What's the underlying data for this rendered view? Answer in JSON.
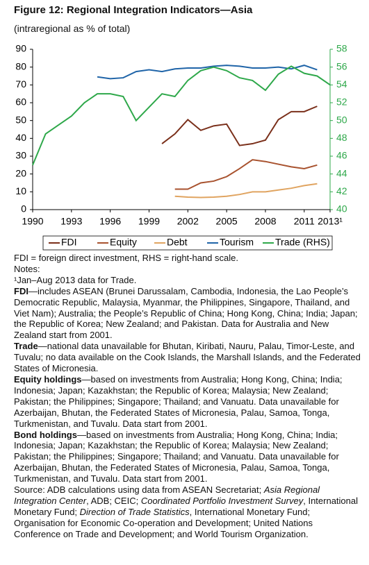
{
  "chart_data": {
    "type": "line",
    "title": "Figure 12: Regional Integration Indicators—Asia",
    "subtitle": "(intraregional as % of total)",
    "x": [
      1990,
      1991,
      1992,
      1993,
      1994,
      1995,
      1996,
      1997,
      1998,
      1999,
      2000,
      2001,
      2002,
      2003,
      2004,
      2005,
      2006,
      2007,
      2008,
      2009,
      2010,
      2011,
      2012,
      2013
    ],
    "xlim": [
      1990,
      2013
    ],
    "xticks": [
      1990,
      1993,
      1996,
      1999,
      2002,
      2005,
      2008,
      2011,
      {
        "value": 2013,
        "label": "2013¹"
      }
    ],
    "ylim": [
      0,
      90
    ],
    "yticks": [
      0,
      10,
      20,
      30,
      40,
      50,
      60,
      70,
      80,
      90
    ],
    "y2lim": [
      40,
      58
    ],
    "y2ticks": [
      40,
      42,
      44,
      46,
      48,
      50,
      52,
      54,
      56,
      58
    ],
    "y2color": "#2ea84a",
    "legend": "bottom",
    "series": [
      {
        "name": "FDI",
        "color": "#7a2f1a",
        "values": [
          null,
          null,
          null,
          null,
          null,
          null,
          null,
          null,
          null,
          null,
          37,
          42.5,
          50.5,
          44.5,
          47,
          48,
          36,
          37,
          39,
          50.5,
          55,
          55,
          58,
          null
        ]
      },
      {
        "name": "Equity",
        "color": "#a8522e",
        "values": [
          null,
          null,
          null,
          null,
          null,
          null,
          null,
          null,
          null,
          null,
          null,
          11.5,
          11.5,
          15,
          16,
          18.5,
          23,
          28,
          27,
          25.5,
          24,
          23,
          25,
          null
        ]
      },
      {
        "name": "Debt",
        "color": "#e0a460",
        "values": [
          null,
          null,
          null,
          null,
          null,
          null,
          null,
          null,
          null,
          null,
          null,
          7.5,
          7,
          6.8,
          7,
          7.5,
          8.5,
          10,
          10,
          11,
          12,
          13.5,
          14.5,
          null
        ]
      },
      {
        "name": "Tourism",
        "color": "#1f64a8",
        "values": [
          null,
          null,
          null,
          null,
          null,
          74.5,
          73.5,
          74,
          77.5,
          78.5,
          77.5,
          79,
          79.5,
          79.5,
          80.5,
          81,
          80.5,
          79.5,
          79.5,
          80,
          79,
          81,
          78.5,
          null
        ]
      },
      {
        "name": "Trade (RHS)",
        "color": "#2ea84a",
        "axis": "y2",
        "values": [
          45,
          48.5,
          49.5,
          50.5,
          52,
          53,
          53,
          52.7,
          50,
          51.5,
          53,
          52.7,
          54.5,
          55.6,
          56,
          55.6,
          54.8,
          54.5,
          53.4,
          55.2,
          56.1,
          55.3,
          55,
          54
        ]
      }
    ]
  },
  "notes": {
    "lines": [
      "FDI = foreign direct investment, RHS = right-hand scale.",
      "Notes:",
      "¹Jan–Aug 2013 data for Trade."
    ],
    "paragraphs": [
      {
        "lead": "FDI",
        "text": "—includes ASEAN (Brunei Darussalam, Cambodia, Indonesia, the Lao People’s Democratic Republic, Malaysia, Myanmar, the Philippines, Singapore, Thailand, and Viet Nam); Australia; the People’s Republic of China; Hong Kong, China; India; Japan; the Republic of Korea; New Zealand; and Pakistan. Data for Australia and New Zealand start from 2001."
      },
      {
        "lead": "Trade",
        "text": "—national data unavailable for Bhutan, Kiribati, Nauru, Palau, Timor-Leste, and Tuvalu; no data available on the Cook Islands, the Marshall Islands, and the Federated States of Micronesia."
      },
      {
        "lead": "Equity holdings",
        "text": "—based on investments from Australia; Hong Kong, China; India; Indonesia; Japan; Kazakhstan; the Republic of Korea; Malaysia; New Zealand; Pakistan; the Philippines; Singapore; Thailand; and Vanuatu. Data unavailable for Azerbaijan, Bhutan, the Federated States of Micronesia, Palau, Samoa, Tonga, Turkmenistan, and Tuvalu. Data start from 2001."
      },
      {
        "lead": "Bond holdings",
        "text": "—based on investments from Australia; Hong Kong, China; India; Indonesia; Japan; Kazakhstan; the Republic of Korea; Malaysia; New Zealand; Pakistan; the Philippines; Singapore; Thailand; and Vanuatu. Data unavailable for Azerbaijan, Bhutan, the Federated States of Micronesia, Palau, Samoa, Tonga, Turkmenistan, and Tuvalu. Data start from 2001."
      }
    ],
    "source": [
      "Source: ADB calculations using data from ASEAN Secretariat; ",
      "Asia Regional Integration Center",
      ", ADB; CEIC; ",
      "Coordinated Portfolio Investment Survey",
      ", International Monetary Fund; ",
      "Direction of Trade Statistics",
      ", International Monetary Fund; Organisation for Economic Co-operation and Development; United Nations Conference on Trade and Development; and World Tourism Organization."
    ]
  }
}
